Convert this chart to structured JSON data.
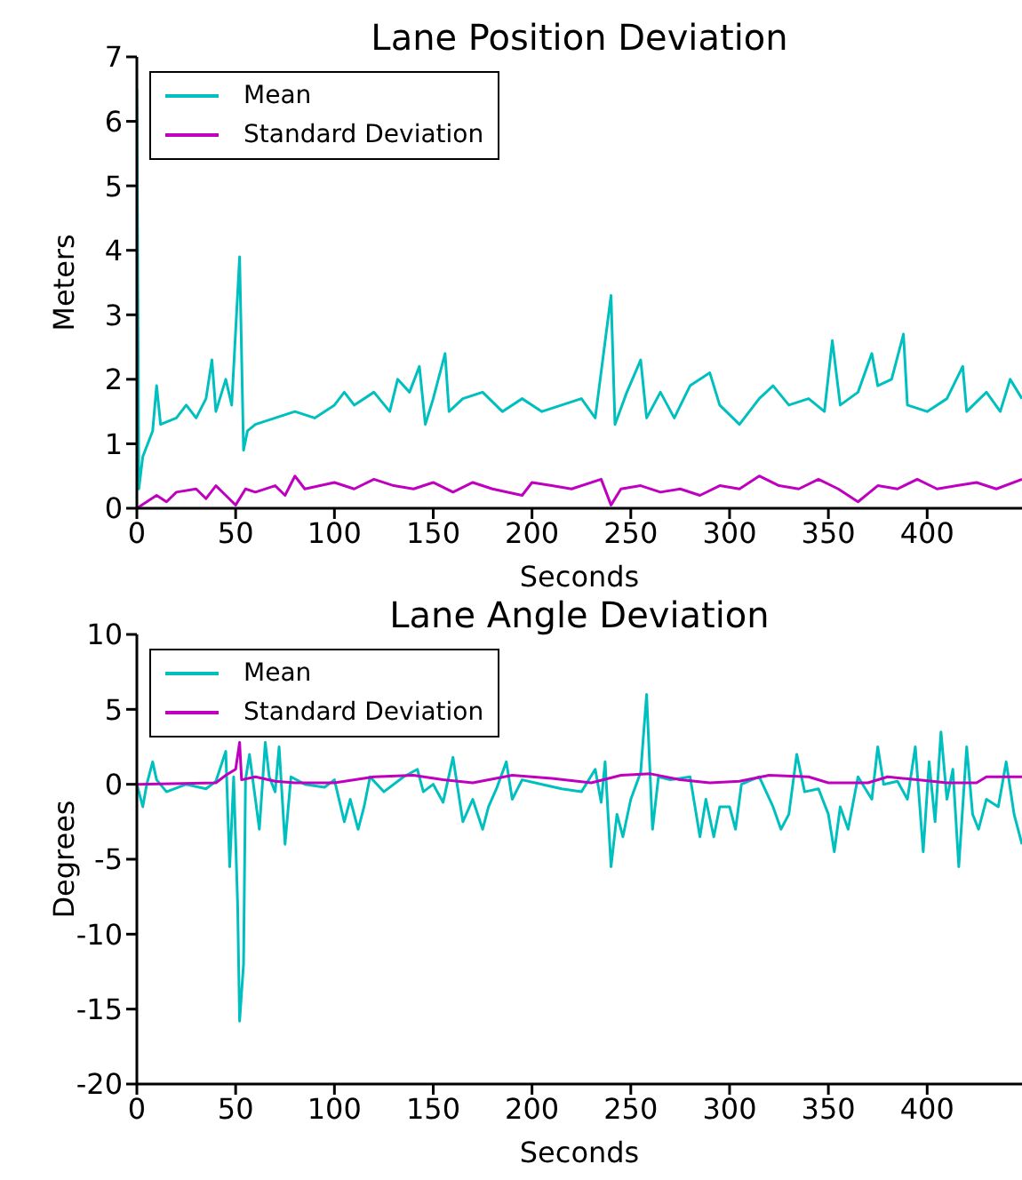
{
  "chart_data": [
    {
      "type": "line",
      "title": "Lane Position Deviation",
      "xlabel": "Seconds",
      "ylabel": "Meters",
      "xlim": [
        0,
        448
      ],
      "xticks": [
        0,
        50,
        100,
        150,
        200,
        250,
        300,
        350,
        400
      ],
      "ylim": [
        0,
        7
      ],
      "yticks": [
        0,
        1,
        2,
        3,
        4,
        5,
        6,
        7
      ],
      "grid": false,
      "legend": "top left",
      "series": [
        {
          "name": "Mean",
          "color": "#00bfbf",
          "x": [
            0,
            1,
            3,
            8,
            10,
            12,
            20,
            25,
            30,
            35,
            38,
            40,
            45,
            48,
            52,
            54,
            56,
            60,
            70,
            80,
            90,
            100,
            105,
            110,
            120,
            128,
            132,
            138,
            143,
            146,
            150,
            156,
            158,
            165,
            175,
            185,
            195,
            205,
            215,
            225,
            232,
            240,
            242,
            248,
            255,
            258,
            265,
            272,
            280,
            290,
            295,
            305,
            315,
            322,
            330,
            340,
            348,
            352,
            356,
            365,
            372,
            375,
            382,
            388,
            390,
            400,
            410,
            418,
            420,
            430,
            437,
            442,
            448
          ],
          "values": [
            6.5,
            0.3,
            0.8,
            1.2,
            1.9,
            1.3,
            1.4,
            1.6,
            1.4,
            1.7,
            2.3,
            1.5,
            2.0,
            1.6,
            3.9,
            0.9,
            1.2,
            1.3,
            1.4,
            1.5,
            1.4,
            1.6,
            1.8,
            1.6,
            1.8,
            1.5,
            2.0,
            1.8,
            2.2,
            1.3,
            1.7,
            2.4,
            1.5,
            1.7,
            1.8,
            1.5,
            1.7,
            1.5,
            1.6,
            1.7,
            1.4,
            3.3,
            1.3,
            1.8,
            2.3,
            1.4,
            1.8,
            1.4,
            1.9,
            2.1,
            1.6,
            1.3,
            1.7,
            1.9,
            1.6,
            1.7,
            1.5,
            2.6,
            1.6,
            1.8,
            2.4,
            1.9,
            2.0,
            2.7,
            1.6,
            1.5,
            1.7,
            2.2,
            1.5,
            1.8,
            1.5,
            2.0,
            1.7
          ]
        },
        {
          "name": "Standard Deviation",
          "color": "#bf00bf",
          "x": [
            0,
            5,
            10,
            15,
            20,
            30,
            35,
            40,
            45,
            50,
            55,
            60,
            70,
            75,
            80,
            85,
            100,
            110,
            120,
            130,
            140,
            150,
            160,
            170,
            180,
            195,
            200,
            210,
            220,
            235,
            240,
            245,
            255,
            265,
            275,
            285,
            295,
            305,
            315,
            325,
            335,
            345,
            355,
            365,
            375,
            385,
            395,
            405,
            415,
            425,
            435,
            448
          ],
          "values": [
            0,
            0.1,
            0.2,
            0.1,
            0.25,
            0.3,
            0.15,
            0.35,
            0.2,
            0.05,
            0.3,
            0.25,
            0.35,
            0.2,
            0.5,
            0.3,
            0.4,
            0.3,
            0.45,
            0.35,
            0.3,
            0.4,
            0.25,
            0.4,
            0.3,
            0.2,
            0.4,
            0.35,
            0.3,
            0.45,
            0.05,
            0.3,
            0.35,
            0.25,
            0.3,
            0.2,
            0.35,
            0.3,
            0.5,
            0.35,
            0.3,
            0.45,
            0.3,
            0.1,
            0.35,
            0.3,
            0.45,
            0.3,
            0.35,
            0.4,
            0.3,
            0.45
          ]
        }
      ]
    },
    {
      "type": "line",
      "title": "Lane Angle Deviation",
      "xlabel": "Seconds",
      "ylabel": "Degrees",
      "xlim": [
        0,
        448
      ],
      "xticks": [
        0,
        50,
        100,
        150,
        200,
        250,
        300,
        350,
        400
      ],
      "ylim": [
        -20,
        10
      ],
      "yticks": [
        -20,
        -15,
        -10,
        -5,
        0,
        5,
        10
      ],
      "grid": false,
      "legend": "top left",
      "series": [
        {
          "name": "Mean",
          "color": "#00bfbf",
          "x": [
            0,
            3,
            5,
            8,
            10,
            15,
            25,
            35,
            40,
            45,
            47,
            49,
            51,
            52,
            54,
            55,
            57,
            60,
            62,
            65,
            67,
            70,
            72,
            75,
            78,
            85,
            95,
            100,
            105,
            108,
            112,
            115,
            118,
            125,
            135,
            142,
            145,
            150,
            155,
            160,
            165,
            170,
            175,
            178,
            182,
            187,
            190,
            195,
            205,
            215,
            225,
            232,
            235,
            237,
            240,
            243,
            246,
            250,
            255,
            258,
            261,
            264,
            270,
            280,
            285,
            288,
            292,
            295,
            300,
            303,
            306,
            315,
            322,
            326,
            330,
            334,
            338,
            345,
            350,
            353,
            356,
            360,
            365,
            372,
            375,
            378,
            385,
            390,
            394,
            398,
            401,
            404,
            407,
            410,
            413,
            416,
            420,
            423,
            426,
            430,
            436,
            440,
            444,
            448
          ],
          "values": [
            0,
            -1.5,
            0,
            1.5,
            0.3,
            -0.5,
            0,
            -0.3,
            0.2,
            2.2,
            -5.5,
            0.5,
            -8,
            -15.8,
            -12,
            0.3,
            2,
            -1,
            -3,
            2.8,
            0.5,
            -0.5,
            2.5,
            -4,
            0.5,
            0,
            -0.2,
            0.3,
            -2.5,
            -1,
            -3,
            -1.5,
            0.5,
            -0.5,
            0.5,
            1,
            -0.5,
            0,
            -1.2,
            1.8,
            -2.5,
            -1,
            -3,
            -1.5,
            -0.3,
            1.5,
            -1,
            0.3,
            0,
            -0.3,
            -0.5,
            1,
            -1.2,
            1.5,
            -5.5,
            -2,
            -3.5,
            -1,
            0.8,
            6,
            -3,
            0.5,
            0.3,
            0.5,
            -3.5,
            -1,
            -3.5,
            -1.5,
            -1.5,
            -3,
            0,
            0.5,
            -1.5,
            -3,
            -2,
            2,
            -0.5,
            -0.3,
            -2,
            -4.5,
            -1.5,
            -3,
            0.5,
            -1,
            2.5,
            0,
            0.2,
            -1,
            2.5,
            -4.5,
            1.5,
            -2.5,
            3.5,
            -1,
            1,
            -5.5,
            2.5,
            -2,
            -3,
            -1,
            -1.5,
            1.5,
            -2,
            -4
          ]
        },
        {
          "name": "Standard Deviation",
          "color": "#bf00bf",
          "x": [
            0,
            40,
            45,
            50,
            52,
            53,
            60,
            70,
            80,
            100,
            120,
            140,
            155,
            170,
            190,
            210,
            230,
            245,
            260,
            275,
            290,
            305,
            320,
            340,
            350,
            370,
            380,
            395,
            410,
            425,
            430,
            448
          ],
          "values": [
            0,
            0.1,
            0.6,
            1,
            2.8,
            0.3,
            0.5,
            0.2,
            0.1,
            0.1,
            0.5,
            0.6,
            0.3,
            0.1,
            0.6,
            0.4,
            0.1,
            0.6,
            0.7,
            0.3,
            0.1,
            0.2,
            0.6,
            0.5,
            0.1,
            0.1,
            0.5,
            0.3,
            0.1,
            0.1,
            0.5,
            0.5
          ]
        }
      ]
    }
  ]
}
